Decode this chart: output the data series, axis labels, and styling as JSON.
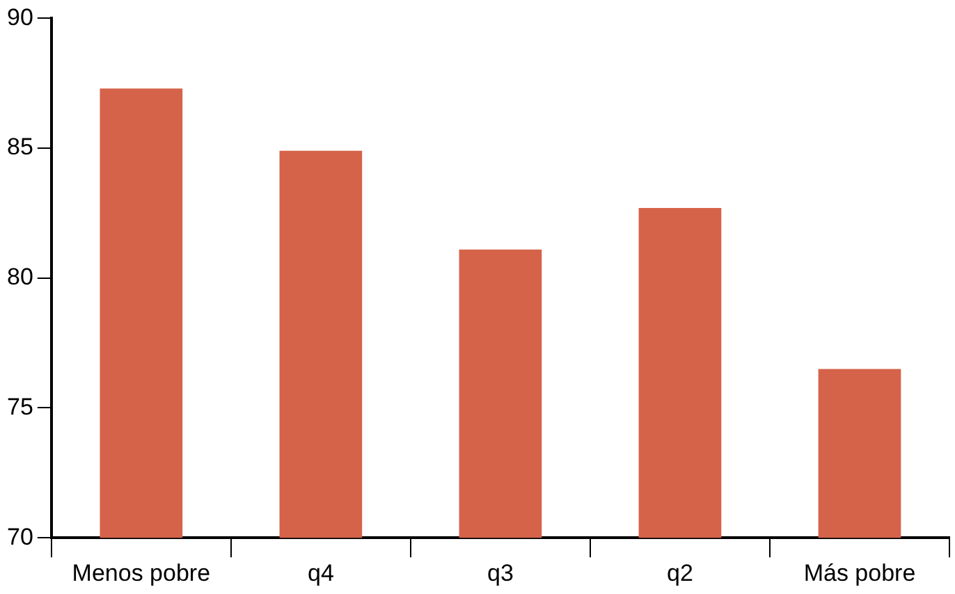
{
  "chart_data": {
    "type": "bar",
    "categories": [
      "Menos pobre",
      "q4",
      "q3",
      "q2",
      "Más pobre"
    ],
    "values": [
      87.3,
      84.9,
      81.1,
      82.7,
      76.5
    ],
    "color": "#d4634a",
    "ylim": [
      70,
      90
    ],
    "yticks": [
      70,
      75,
      80,
      85,
      90
    ],
    "grid": false,
    "legend": false
  }
}
